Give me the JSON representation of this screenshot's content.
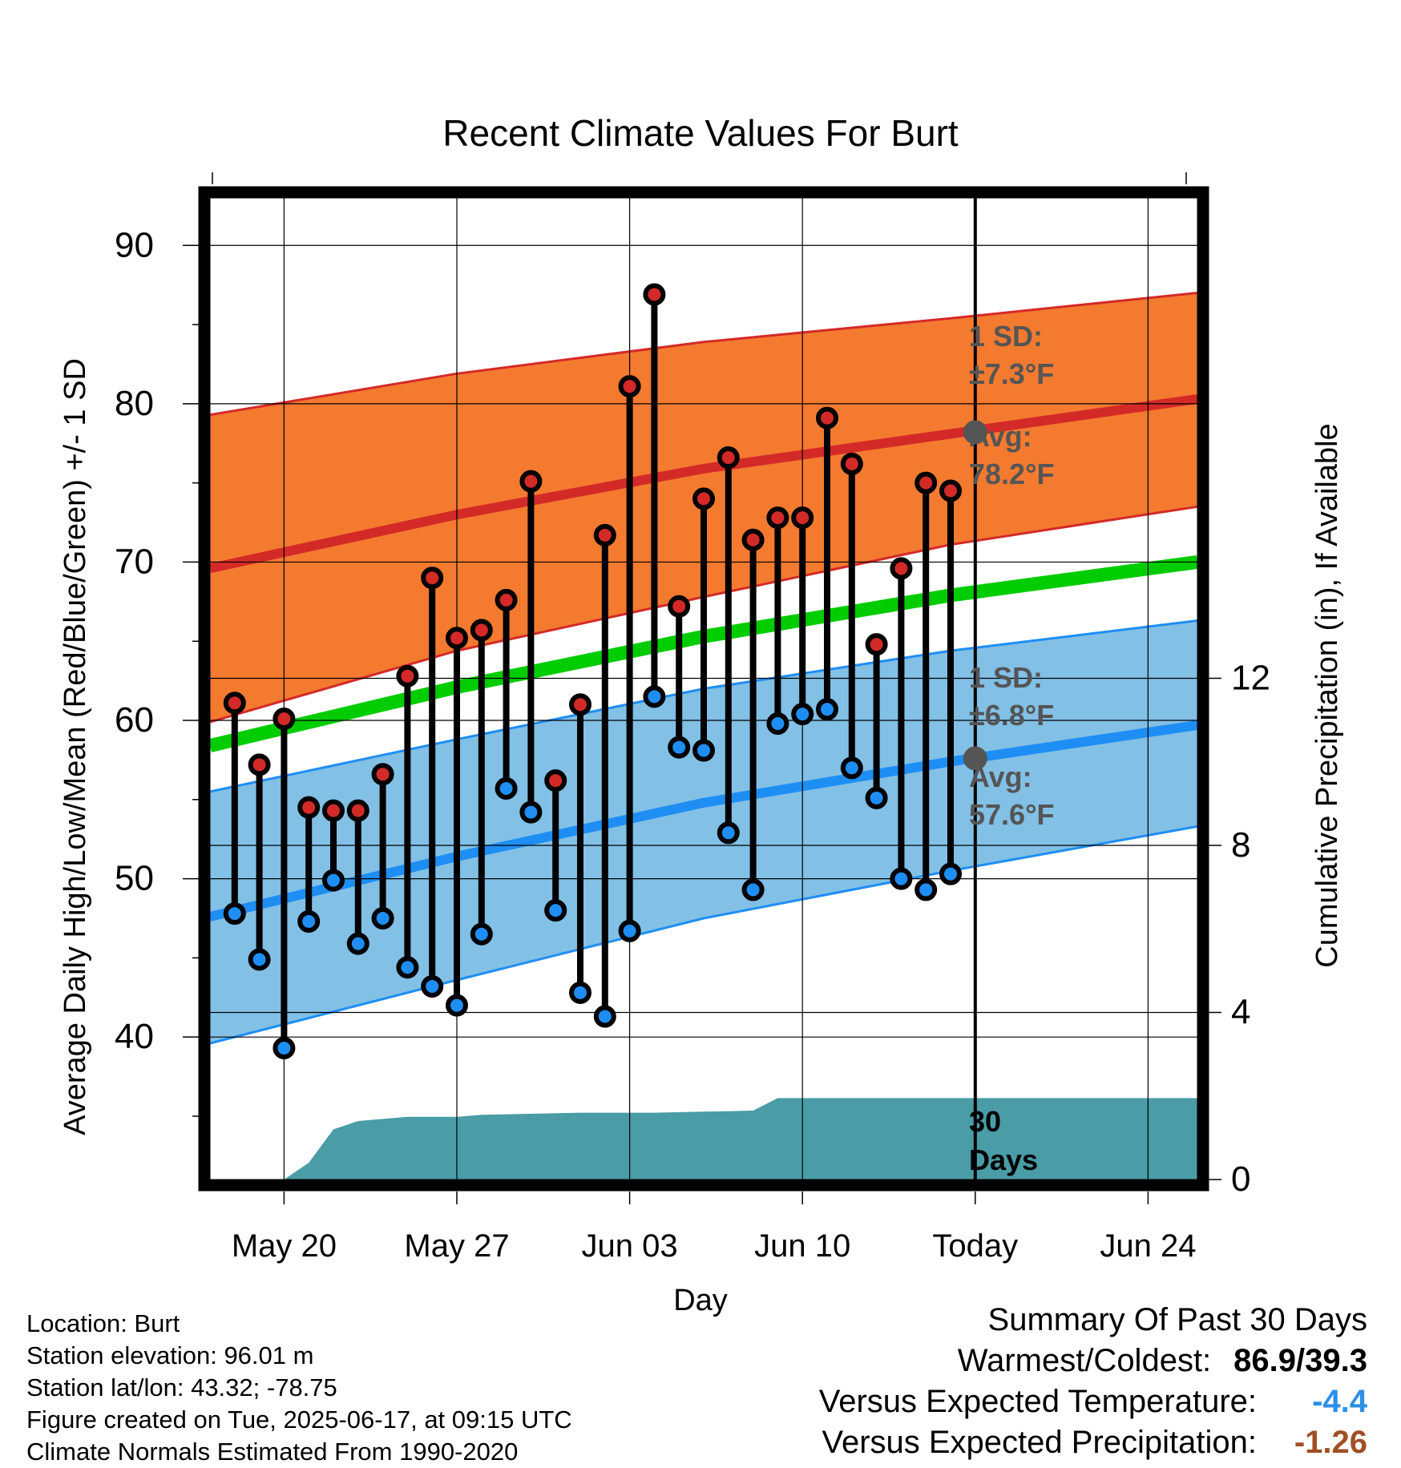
{
  "colors": {
    "high_band": "#f47a30",
    "low_band": "#82c0e6",
    "avg_high_line": "#d42a27",
    "avg_low_line": "#1e8ef5",
    "mean_line": "#00cc00",
    "precip_fill": "#4a9ca6",
    "high_marker": "#d42a27",
    "low_marker": "#1e8ef5",
    "annotation_grey": "#555555",
    "versus_temp": "#2d8fe6",
    "versus_precip": "#a04f24"
  },
  "chart_data": {
    "type": "line",
    "title": "Recent Climate Values For Burt",
    "xlabel": "Day",
    "ylabel": "Average Daily High/Low/Mean (Red/Blue/Green) +/- 1 SD",
    "ylabel_right": "Cumulative Precipitation (in), If Available",
    "ylim": [
      31,
      93
    ],
    "ylim_right": [
      0,
      23.5
    ],
    "yticks": [
      "40",
      "50",
      "60",
      "70",
      "80",
      "90"
    ],
    "yticks_right": [
      "0",
      "4",
      "8",
      "12"
    ],
    "x_range": [
      "2025-05-17",
      "2025-06-26"
    ],
    "xticks": [
      {
        "date": "2025-05-20",
        "label": "May 20"
      },
      {
        "date": "2025-05-27",
        "label": "May 27"
      },
      {
        "date": "2025-06-03",
        "label": "Jun 03"
      },
      {
        "date": "2025-06-10",
        "label": "Jun 10"
      },
      {
        "date": "2025-06-17",
        "label": "Today"
      },
      {
        "date": "2025-06-24",
        "label": "Jun 24"
      }
    ],
    "today": "2025-06-17",
    "grid": true,
    "daily_high_low": {
      "dates": [
        "2025-05-18",
        "2025-05-19",
        "2025-05-20",
        "2025-05-21",
        "2025-05-22",
        "2025-05-23",
        "2025-05-24",
        "2025-05-25",
        "2025-05-26",
        "2025-05-27",
        "2025-05-28",
        "2025-05-29",
        "2025-05-30",
        "2025-05-31",
        "2025-06-01",
        "2025-06-02",
        "2025-06-03",
        "2025-06-04",
        "2025-06-05",
        "2025-06-06",
        "2025-06-07",
        "2025-06-08",
        "2025-06-09",
        "2025-06-10",
        "2025-06-11",
        "2025-06-12",
        "2025-06-13",
        "2025-06-14",
        "2025-06-15",
        "2025-06-16"
      ],
      "high": [
        61.1,
        57.2,
        60.1,
        54.5,
        54.3,
        54.3,
        56.6,
        62.8,
        69.0,
        65.2,
        65.7,
        67.6,
        75.1,
        56.2,
        61.0,
        71.7,
        81.1,
        86.9,
        67.2,
        74.0,
        76.6,
        71.4,
        72.8,
        72.8,
        79.1,
        76.2,
        64.8,
        69.6,
        75.0,
        74.5
      ],
      "low": [
        47.8,
        44.9,
        39.3,
        47.3,
        49.9,
        45.9,
        47.5,
        44.4,
        43.2,
        42.0,
        46.5,
        55.7,
        54.2,
        48.0,
        42.8,
        41.3,
        46.7,
        61.5,
        58.3,
        58.1,
        52.9,
        49.3,
        59.8,
        60.4,
        60.7,
        57.0,
        55.1,
        50.0,
        49.3,
        50.3
      ]
    },
    "normals": {
      "dates": [
        "2025-05-17",
        "2025-05-27",
        "2025-06-06",
        "2025-06-16",
        "2025-06-26"
      ],
      "avg_high": [
        69.6,
        73.0,
        75.9,
        78.1,
        80.3
      ],
      "avg_high_upper": [
        79.3,
        81.9,
        83.9,
        85.4,
        87.0
      ],
      "avg_high_lower": [
        59.9,
        64.4,
        67.8,
        71.1,
        73.5
      ],
      "avg_mean": [
        58.4,
        62.1,
        65.3,
        67.9,
        70.0
      ],
      "avg_low": [
        47.6,
        51.4,
        54.8,
        57.4,
        59.7
      ],
      "avg_low_upper": [
        55.5,
        58.8,
        62.0,
        64.4,
        66.3
      ],
      "avg_low_lower": [
        39.6,
        43.6,
        47.5,
        50.5,
        53.3
      ]
    },
    "precip_cumulative": {
      "dates": [
        "2025-05-17",
        "2025-05-20",
        "2025-05-21",
        "2025-05-22",
        "2025-05-23",
        "2025-05-24",
        "2025-05-25",
        "2025-05-26",
        "2025-05-27",
        "2025-05-28",
        "2025-06-01",
        "2025-06-04",
        "2025-06-08",
        "2025-06-09",
        "2025-06-17",
        "2025-06-26"
      ],
      "values": [
        0.0,
        0.0,
        0.4,
        1.2,
        1.4,
        1.45,
        1.5,
        1.5,
        1.5,
        1.55,
        1.6,
        1.6,
        1.65,
        1.95,
        1.95,
        1.95
      ]
    },
    "annotations": {
      "high_sd_label": "1 SD:",
      "high_sd_value": "±7.3°F",
      "high_avg_label": "Avg:",
      "high_avg_value": "78.2°F",
      "high_avg_today": 78.2,
      "low_sd_label": "1 SD:",
      "low_sd_value": "±6.8°F",
      "low_avg_label": "Avg:",
      "low_avg_value": "57.6°F",
      "low_avg_today": 57.6,
      "days_label_1": "30",
      "days_label_2": "Days"
    }
  },
  "footer": {
    "location": "Location: Burt",
    "elevation": "Station elevation: 96.01 m",
    "latlon": "Station lat/lon: 43.32; -78.75",
    "created": "Figure created on Tue, 2025-06-17, at 09:15 UTC",
    "normals": "Climate Normals Estimated From 1990-2020"
  },
  "summary": {
    "title": "Summary Of Past 30 Days",
    "warm_cold_label": "Warmest/Coldest:",
    "warm_cold_value": "86.9/39.3",
    "temp_label": "Versus Expected Temperature:",
    "temp_value": "-4.4",
    "precip_label": "Versus Expected Precipitation:",
    "precip_value": "-1.26"
  }
}
